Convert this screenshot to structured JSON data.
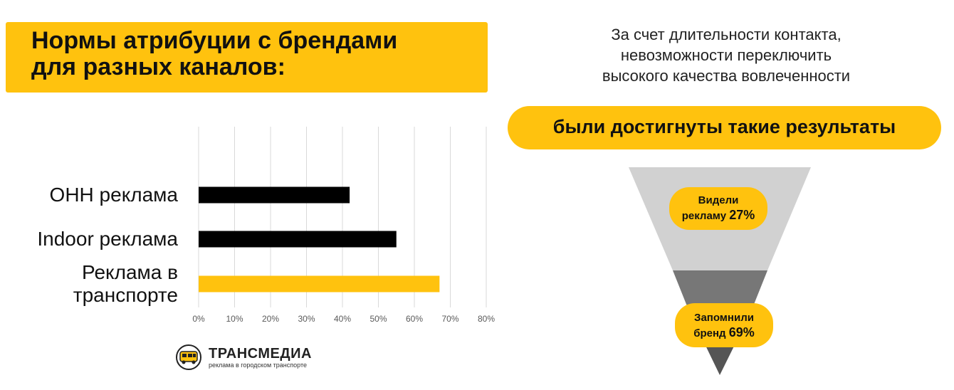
{
  "header": {
    "title_line1": "Нормы  атрибуции с брендами",
    "title_line2": "для разных  каналов:"
  },
  "chart_data": {
    "type": "bar",
    "orientation": "horizontal",
    "categories": [
      "ОНН реклама",
      "Indoor реклама",
      "Реклама  в транспорте"
    ],
    "category_lines": [
      [
        "ОНН реклама"
      ],
      [
        "Indoor реклама"
      ],
      [
        "Реклама  в",
        "транспорте"
      ]
    ],
    "values": [
      42,
      55,
      67
    ],
    "bar_colors": [
      "#000000",
      "#000000",
      "#FFC20E"
    ],
    "xlim": [
      0,
      80
    ],
    "xticks": [
      "0%",
      "10%",
      "20%",
      "30%",
      "40%",
      "50%",
      "60%",
      "70%",
      "80%"
    ],
    "grid": true,
    "title": "",
    "xlabel": "",
    "ylabel": ""
  },
  "logo": {
    "name": "ТРАНСМЕДИА",
    "tagline": "реклама в городском транспорте"
  },
  "intro": {
    "lines": [
      "За счет длительности контакта,",
      "невозможности переключить",
      "высокого качества вовлеченности"
    ]
  },
  "results_pill": "были  достигнуты такие  результаты",
  "funnel": {
    "stage1_line1": "Видели",
    "stage1_line2": "рекламу",
    "stage1_value": "27%",
    "stage2_line1": "Запомнили",
    "stage2_line2": "бренд",
    "stage2_value": "69%"
  },
  "colors": {
    "accent": "#FFC20E",
    "bar_dark": "#000000",
    "funnel_top": "#D1D1D1",
    "funnel_mid": "#777777",
    "funnel_bottom": "#555555"
  }
}
